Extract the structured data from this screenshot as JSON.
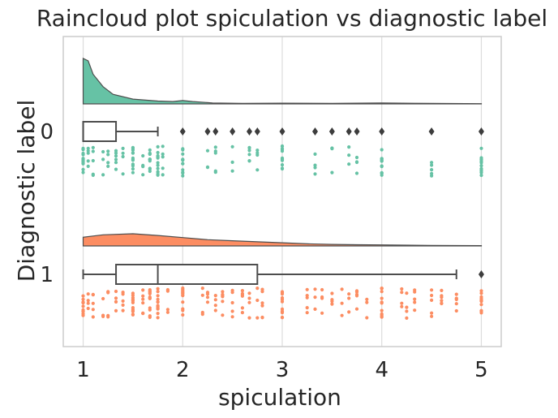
{
  "chart_data": {
    "type": "raincloud",
    "title": "Raincloud plot spiculation vs diagnostic label",
    "xlabel": "spiculation",
    "ylabel": "Diagnostic label",
    "xlim": [
      0.8,
      5.2
    ],
    "xticks": [
      1,
      2,
      3,
      4,
      5
    ],
    "grid": true,
    "orientation": "horizontal",
    "categories": [
      "0",
      "1"
    ],
    "groups": [
      {
        "label": "0",
        "color": "#66c2a5",
        "density": [
          [
            1.0,
            0.95
          ],
          [
            1.05,
            0.9
          ],
          [
            1.1,
            0.62
          ],
          [
            1.2,
            0.36
          ],
          [
            1.3,
            0.2
          ],
          [
            1.5,
            0.1
          ],
          [
            1.75,
            0.06
          ],
          [
            1.9,
            0.05
          ],
          [
            2.0,
            0.07
          ],
          [
            2.1,
            0.05
          ],
          [
            2.3,
            0.02
          ],
          [
            2.6,
            0.01
          ],
          [
            3.0,
            0.015
          ],
          [
            3.5,
            0.01
          ],
          [
            4.0,
            0.02
          ],
          [
            4.5,
            0.01
          ],
          [
            5.0,
            0.005
          ]
        ],
        "box": {
          "q1": 1.0,
          "median": 1.0,
          "q3": 1.33,
          "whisker_low": 1.0,
          "whisker_high": 1.75
        },
        "outliers": [
          2.0,
          2.25,
          2.33,
          2.5,
          2.67,
          2.75,
          3.0,
          3.33,
          3.5,
          3.67,
          3.75,
          4.0,
          4.5,
          5.0
        ],
        "points": [
          1.0,
          1.05,
          1.1,
          1.2,
          1.25,
          1.33,
          1.4,
          1.5,
          1.6,
          1.67,
          1.75,
          1.8,
          2.0,
          2.25,
          2.33,
          2.5,
          2.67,
          2.75,
          3.0,
          3.33,
          3.5,
          3.67,
          3.75,
          4.0,
          4.5,
          5.0
        ]
      },
      {
        "label": "1",
        "color": "#fc8d62",
        "density": [
          [
            1.0,
            0.25
          ],
          [
            1.2,
            0.32
          ],
          [
            1.5,
            0.35
          ],
          [
            1.75,
            0.3
          ],
          [
            2.0,
            0.24
          ],
          [
            2.25,
            0.18
          ],
          [
            2.5,
            0.15
          ],
          [
            2.75,
            0.12
          ],
          [
            3.0,
            0.09
          ],
          [
            3.25,
            0.06
          ],
          [
            3.5,
            0.045
          ],
          [
            3.75,
            0.035
          ],
          [
            4.0,
            0.03
          ],
          [
            4.5,
            0.015
          ],
          [
            5.0,
            0.01
          ]
        ],
        "box": {
          "q1": 1.33,
          "median": 1.75,
          "q3": 2.75,
          "whisker_low": 1.0,
          "whisker_high": 4.75
        },
        "outliers": [
          5.0
        ],
        "points": [
          1.0,
          1.05,
          1.1,
          1.2,
          1.25,
          1.33,
          1.4,
          1.5,
          1.6,
          1.67,
          1.75,
          1.85,
          2.0,
          2.2,
          2.25,
          2.33,
          2.4,
          2.5,
          2.6,
          2.67,
          2.75,
          2.8,
          3.0,
          3.25,
          3.33,
          3.4,
          3.5,
          3.6,
          3.67,
          3.75,
          3.85,
          4.0,
          4.2,
          4.25,
          4.33,
          4.5,
          4.6,
          4.75,
          5.0
        ]
      }
    ]
  }
}
